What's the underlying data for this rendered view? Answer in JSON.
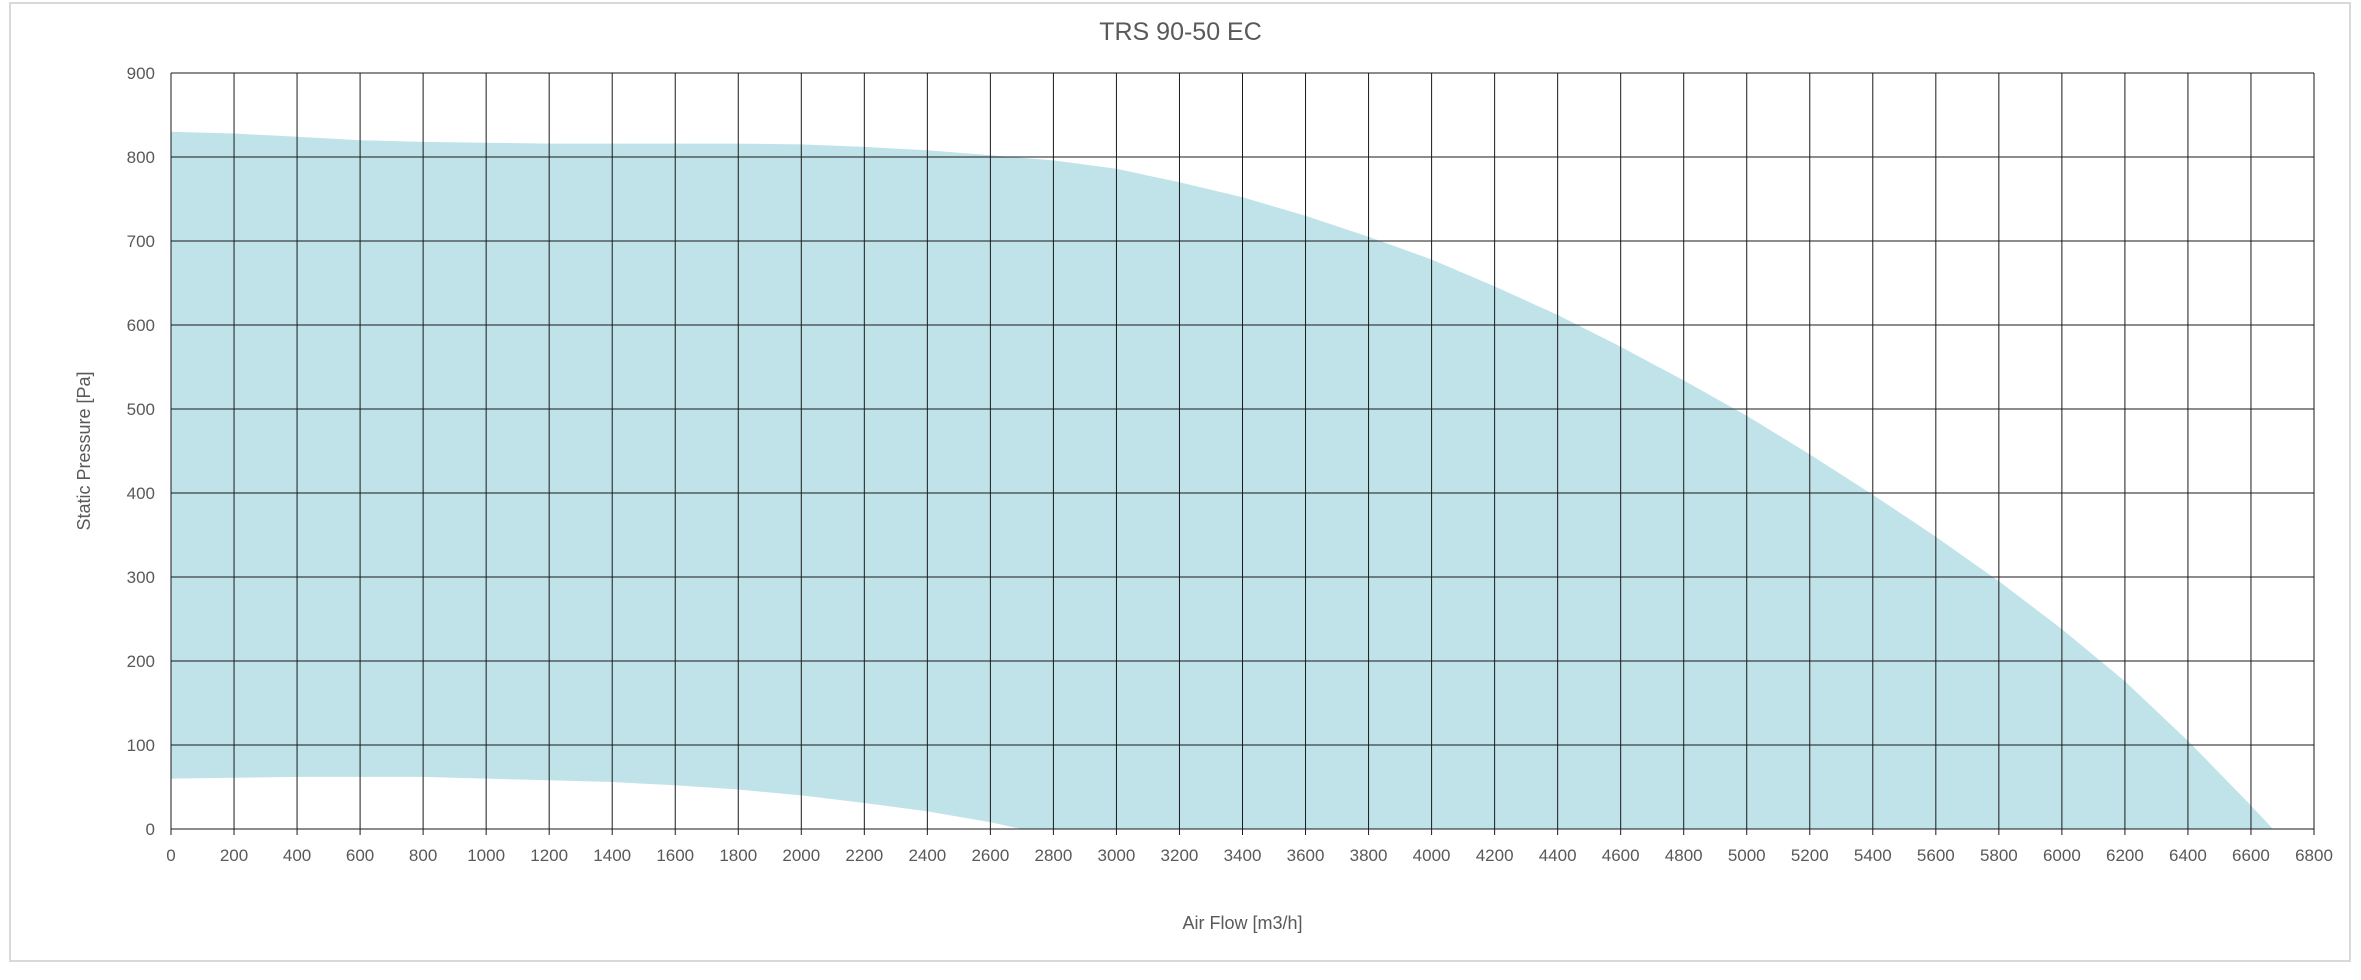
{
  "chart_data": {
    "type": "area",
    "title": "TRS 90-50 EC",
    "xlabel": "Air Flow [m3/h]",
    "ylabel": "Static Pressure [Pa]",
    "xlim": [
      0,
      6800
    ],
    "ylim": [
      0,
      900
    ],
    "x_ticks": [
      0,
      200,
      400,
      600,
      800,
      1000,
      1200,
      1400,
      1600,
      1800,
      2000,
      2200,
      2400,
      2600,
      2800,
      3000,
      3200,
      3400,
      3600,
      3800,
      4000,
      4200,
      4400,
      4600,
      4800,
      5000,
      5200,
      5400,
      5600,
      5800,
      6000,
      6200,
      6400,
      6600,
      6800
    ],
    "y_ticks": [
      0,
      100,
      200,
      300,
      400,
      500,
      600,
      700,
      800,
      900
    ],
    "grid": true,
    "legend": "none",
    "fill_color": "#c0e3ea",
    "series": [
      {
        "role": "upper",
        "points": [
          [
            0,
            830
          ],
          [
            200,
            828
          ],
          [
            400,
            824
          ],
          [
            600,
            820
          ],
          [
            800,
            818
          ],
          [
            1000,
            817
          ],
          [
            1200,
            816
          ],
          [
            1400,
            816
          ],
          [
            1600,
            816
          ],
          [
            1800,
            816
          ],
          [
            2000,
            815
          ],
          [
            2200,
            812
          ],
          [
            2400,
            808
          ],
          [
            2600,
            802
          ],
          [
            2800,
            796
          ],
          [
            3000,
            786
          ],
          [
            3200,
            770
          ],
          [
            3400,
            752
          ],
          [
            3600,
            730
          ],
          [
            3800,
            705
          ],
          [
            4000,
            678
          ],
          [
            4200,
            646
          ],
          [
            4400,
            612
          ],
          [
            4600,
            574
          ],
          [
            4800,
            534
          ],
          [
            5000,
            492
          ],
          [
            5200,
            446
          ],
          [
            5400,
            398
          ],
          [
            5600,
            348
          ],
          [
            5800,
            295
          ],
          [
            6000,
            238
          ],
          [
            6200,
            176
          ],
          [
            6400,
            105
          ],
          [
            6600,
            28
          ],
          [
            6670,
            0
          ]
        ]
      },
      {
        "role": "lower",
        "points": [
          [
            0,
            60
          ],
          [
            200,
            61
          ],
          [
            400,
            62
          ],
          [
            600,
            62
          ],
          [
            800,
            62
          ],
          [
            1000,
            60
          ],
          [
            1200,
            58
          ],
          [
            1400,
            56
          ],
          [
            1600,
            52
          ],
          [
            1800,
            47
          ],
          [
            2000,
            40
          ],
          [
            2200,
            31
          ],
          [
            2400,
            21
          ],
          [
            2600,
            8
          ],
          [
            2700,
            0
          ]
        ]
      }
    ]
  }
}
